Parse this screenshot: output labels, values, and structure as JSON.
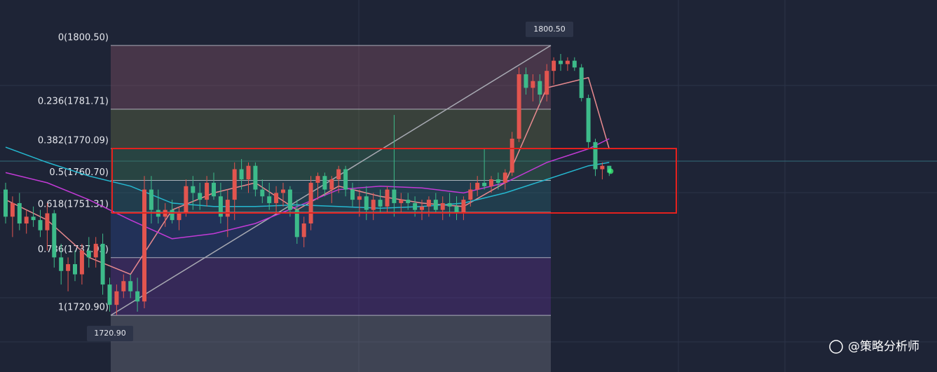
{
  "chart_data": {
    "type": "candlestick",
    "ylim": [
      1704.2,
      1813.9
    ],
    "up_color": "#e2554f",
    "down_color": "#3dbb8a",
    "candles": [
      [
        1758,
        1760,
        1748,
        1750
      ],
      [
        1750,
        1756,
        1744,
        1754
      ],
      [
        1754,
        1757,
        1746,
        1748
      ],
      [
        1748,
        1752,
        1745,
        1750
      ],
      [
        1750,
        1753,
        1747,
        1749
      ],
      [
        1749,
        1752,
        1744,
        1746
      ],
      [
        1746,
        1754,
        1740,
        1751
      ],
      [
        1751,
        1752,
        1735,
        1738
      ],
      [
        1738,
        1742,
        1730,
        1734
      ],
      [
        1734,
        1738,
        1728,
        1736
      ],
      [
        1736,
        1740,
        1731,
        1733
      ],
      [
        1733,
        1742,
        1730,
        1740
      ],
      [
        1740,
        1744,
        1735,
        1738
      ],
      [
        1738,
        1744,
        1735,
        1742
      ],
      [
        1742,
        1745,
        1727,
        1730
      ],
      [
        1730,
        1732,
        1722,
        1724
      ],
      [
        1724,
        1730,
        1721,
        1728
      ],
      [
        1728,
        1733,
        1726,
        1731
      ],
      [
        1731,
        1733,
        1726,
        1728
      ],
      [
        1728,
        1732,
        1722,
        1725
      ],
      [
        1725,
        1762,
        1723,
        1758
      ],
      [
        1758,
        1762,
        1748,
        1752
      ],
      [
        1752,
        1758,
        1748,
        1750
      ],
      [
        1750,
        1754,
        1747,
        1752
      ],
      [
        1752,
        1755,
        1748,
        1749
      ],
      [
        1749,
        1753,
        1746,
        1751
      ],
      [
        1751,
        1761,
        1750,
        1759
      ],
      [
        1759,
        1762,
        1752,
        1757
      ],
      [
        1757,
        1760,
        1752,
        1755
      ],
      [
        1755,
        1762,
        1753,
        1760
      ],
      [
        1760,
        1763,
        1755,
        1756
      ],
      [
        1756,
        1760,
        1748,
        1750
      ],
      [
        1750,
        1758,
        1744,
        1755
      ],
      [
        1755,
        1766,
        1749,
        1764
      ],
      [
        1764,
        1767,
        1758,
        1761
      ],
      [
        1761,
        1766,
        1757,
        1765
      ],
      [
        1765,
        1766,
        1756,
        1758
      ],
      [
        1758,
        1761,
        1754,
        1756
      ],
      [
        1756,
        1760,
        1752,
        1754
      ],
      [
        1754,
        1759,
        1751,
        1757
      ],
      [
        1757,
        1760,
        1753,
        1758
      ],
      [
        1758,
        1759,
        1750,
        1752
      ],
      [
        1752,
        1755,
        1742,
        1744
      ],
      [
        1744,
        1750,
        1741,
        1748
      ],
      [
        1748,
        1762,
        1746,
        1760
      ],
      [
        1760,
        1763,
        1755,
        1762
      ],
      [
        1762,
        1763,
        1756,
        1758
      ],
      [
        1758,
        1762,
        1754,
        1761
      ],
      [
        1761,
        1765,
        1757,
        1764
      ],
      [
        1764,
        1765,
        1756,
        1758
      ],
      [
        1758,
        1760,
        1753,
        1755
      ],
      [
        1755,
        1758,
        1750,
        1756
      ],
      [
        1756,
        1759,
        1749,
        1752
      ],
      [
        1752,
        1757,
        1749,
        1755
      ],
      [
        1755,
        1758,
        1751,
        1753
      ],
      [
        1753,
        1759,
        1751,
        1758
      ],
      [
        1758,
        1780,
        1750,
        1754
      ],
      [
        1754,
        1757,
        1751,
        1755
      ],
      [
        1755,
        1757,
        1752,
        1754
      ],
      [
        1754,
        1756,
        1750,
        1752
      ],
      [
        1752,
        1755,
        1749,
        1753
      ],
      [
        1753,
        1756,
        1750,
        1755
      ],
      [
        1755,
        1757,
        1751,
        1752
      ],
      [
        1752,
        1756,
        1749,
        1754
      ],
      [
        1754,
        1757,
        1750,
        1753
      ],
      [
        1753,
        1756,
        1749,
        1751
      ],
      [
        1751,
        1756,
        1749,
        1755
      ],
      [
        1755,
        1760,
        1753,
        1758
      ],
      [
        1758,
        1762,
        1756,
        1760
      ],
      [
        1760,
        1770,
        1758,
        1759
      ],
      [
        1759,
        1762,
        1757,
        1761
      ],
      [
        1761,
        1763,
        1758,
        1760
      ],
      [
        1760,
        1764,
        1758,
        1763
      ],
      [
        1763,
        1775,
        1762,
        1773
      ],
      [
        1773,
        1794,
        1772,
        1792
      ],
      [
        1792,
        1794,
        1786,
        1788
      ],
      [
        1788,
        1792,
        1784,
        1790
      ],
      [
        1790,
        1792,
        1783,
        1786
      ],
      [
        1786,
        1795,
        1784,
        1793
      ],
      [
        1793,
        1797,
        1789,
        1796
      ],
      [
        1796,
        1798,
        1793,
        1795
      ],
      [
        1795,
        1797,
        1793,
        1796
      ],
      [
        1796,
        1797,
        1793,
        1794
      ],
      [
        1794,
        1795,
        1784,
        1785
      ],
      [
        1785,
        1786,
        1770,
        1772
      ],
      [
        1772,
        1773,
        1762,
        1764
      ],
      [
        1764,
        1766,
        1761,
        1765
      ],
      [
        1765,
        1765,
        1762,
        1763
      ]
    ],
    "ma_index": [
      0,
      6,
      12,
      18,
      24,
      30,
      36,
      42,
      48,
      54,
      60,
      66,
      72,
      78,
      84,
      87
    ],
    "ma_lines": [
      {
        "color": "#e98a8f",
        "values": [
          1755,
          1749,
          1738,
          1733,
          1752,
          1757,
          1760,
          1752,
          1759,
          1756,
          1754,
          1753,
          1760,
          1788,
          1791,
          1770
        ]
      },
      {
        "color": "#c23ad6",
        "values": [
          1763,
          1760,
          1755,
          1749,
          1743.5,
          1745,
          1748,
          1753,
          1758,
          1759,
          1758.5,
          1757,
          1760,
          1766,
          1770,
          1773
        ]
      },
      {
        "color": "#25b8d0",
        "values": [
          1770.5,
          1766,
          1762,
          1759,
          1754,
          1753,
          1753,
          1753.5,
          1753,
          1752.5,
          1753,
          1754,
          1757,
          1761,
          1765,
          1766
        ]
      }
    ],
    "fib_levels": [
      {
        "value": 1800.5,
        "label": "0(1800.50)"
      },
      {
        "value": 1781.71,
        "label": "0.236(1781.71)"
      },
      {
        "value": 1770.09,
        "label": "0.382(1770.09)"
      },
      {
        "value": 1760.7,
        "label": "0.5(1760.70)"
      },
      {
        "value": 1751.31,
        "label": "0.618(1751.31)"
      },
      {
        "value": 1737.93,
        "label": "0.786(1737.93)"
      },
      {
        "value": 1720.9,
        "label": "1(1720.90)"
      }
    ],
    "fib_colors": [
      "rgba(150,90,110,0.35)",
      "rgba(110,120,70,0.35)",
      "rgba(60,130,90,0.35)",
      "rgba(40,110,120,0.35)",
      "rgba(40,70,140,0.4)",
      "rgba(90,50,140,0.4)",
      "rgba(150,150,160,0.28)"
    ],
    "high_tag": "1800.50",
    "low_tag": "1720.90",
    "highlight_box": {
      "ylim": [
        1751.1,
        1770.1
      ],
      "color": "#e5211e"
    },
    "watermark": "@策略分析师"
  }
}
